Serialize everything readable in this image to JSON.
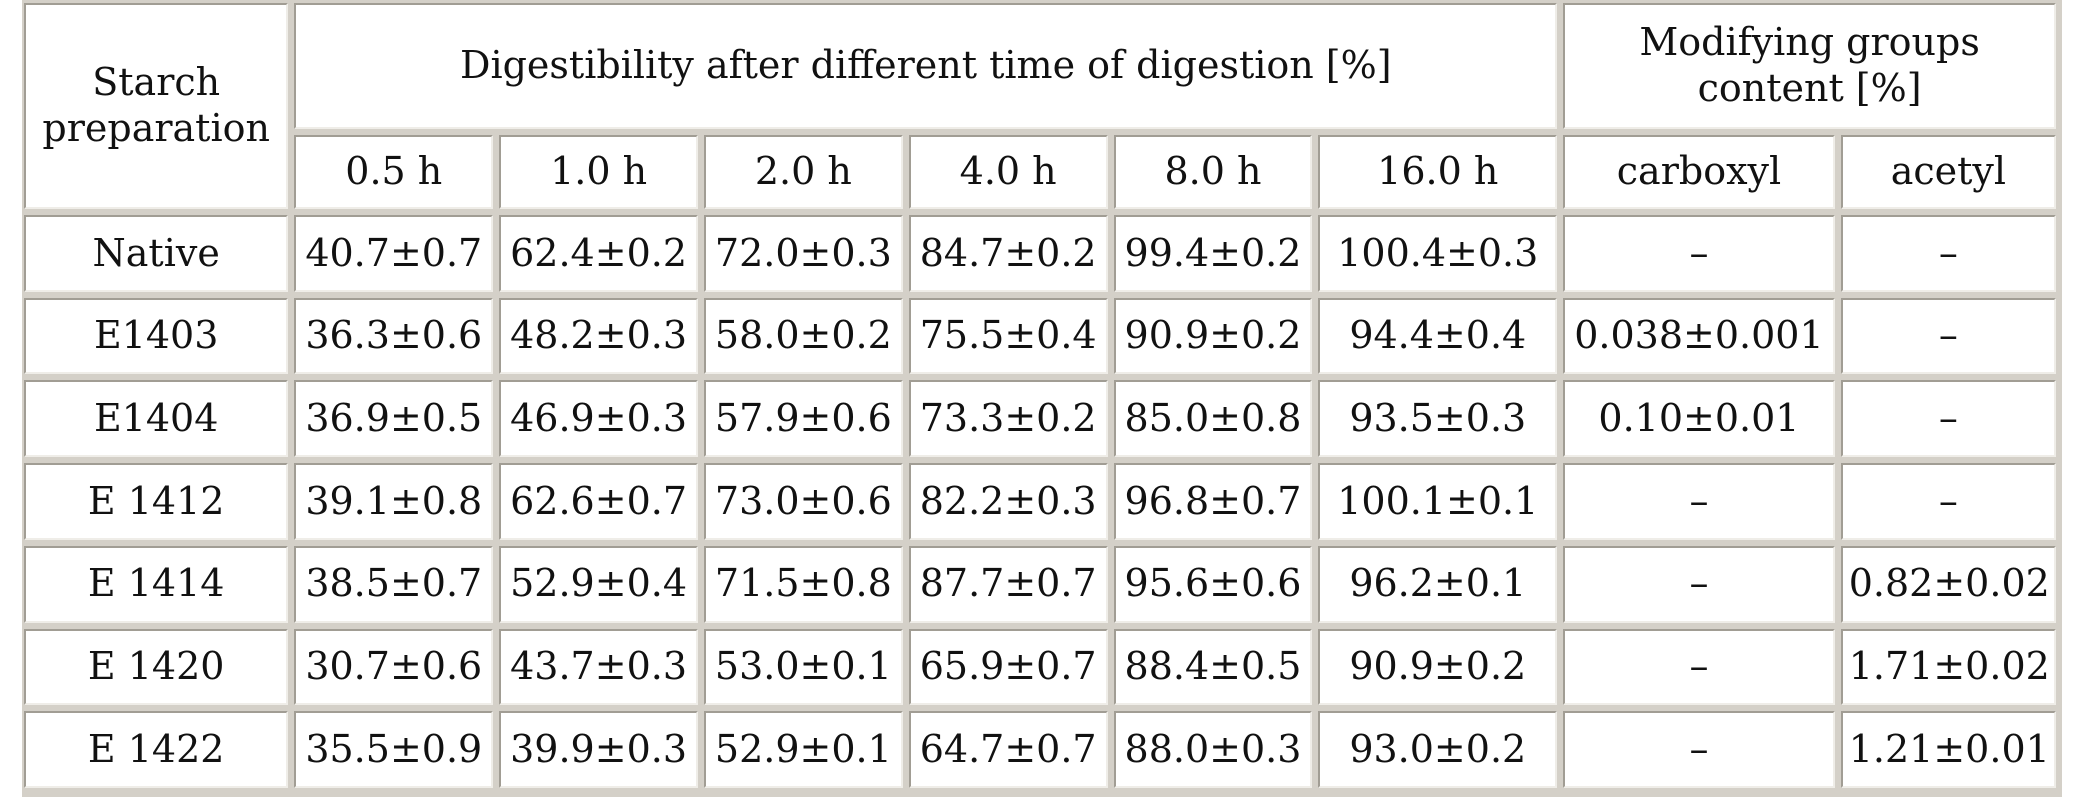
{
  "table": {
    "header": {
      "starch_preparation": "Starch preparation",
      "digestibility": "Digestibility after different time of digestion [%]",
      "modifying_groups": "Modifying groups content [%]",
      "times": [
        "0.5 h",
        "1.0 h",
        "2.0 h",
        "4.0 h",
        "8.0 h",
        "16.0 h"
      ],
      "groups": [
        "carboxyl",
        "acetyl"
      ]
    },
    "rows": [
      {
        "name": "Native",
        "values": [
          "40.7±0.7",
          "62.4±0.2",
          "72.0±0.3",
          "84.7±0.2",
          "99.4±0.2",
          "100.4±0.3"
        ],
        "carboxyl": "–",
        "acetyl": "–"
      },
      {
        "name": "E1403",
        "values": [
          "36.3±0.6",
          "48.2±0.3",
          "58.0±0.2",
          "75.5±0.4",
          "90.9±0.2",
          "94.4±0.4"
        ],
        "carboxyl": "0.038±0.001",
        "acetyl": "–"
      },
      {
        "name": "E1404",
        "values": [
          "36.9±0.5",
          "46.9±0.3",
          "57.9±0.6",
          "73.3±0.2",
          "85.0±0.8",
          "93.5±0.3"
        ],
        "carboxyl": "0.10±0.01",
        "acetyl": "–"
      },
      {
        "name": "E 1412",
        "values": [
          "39.1±0.8",
          "62.6±0.7",
          "73.0±0.6",
          "82.2±0.3",
          "96.8±0.7",
          "100.1±0.1"
        ],
        "carboxyl": "–",
        "acetyl": "–"
      },
      {
        "name": "E 1414",
        "values": [
          "38.5±0.7",
          "52.9±0.4",
          "71.5±0.8",
          "87.7±0.7",
          "95.6±0.6",
          "96.2±0.1"
        ],
        "carboxyl": "–",
        "acetyl": "0.82±0.02"
      },
      {
        "name": "E 1420",
        "values": [
          "30.7±0.6",
          "43.7±0.3",
          "53.0±0.1",
          "65.9±0.7",
          "88.4±0.5",
          "90.9±0.2"
        ],
        "carboxyl": "–",
        "acetyl": "1.71±0.02"
      },
      {
        "name": "E 1422",
        "values": [
          "35.5±0.9",
          "39.9±0.3",
          "52.9±0.1",
          "64.7±0.7",
          "88.0±0.3",
          "93.0±0.2"
        ],
        "carboxyl": "–",
        "acetyl": "1.21±0.01"
      }
    ]
  }
}
